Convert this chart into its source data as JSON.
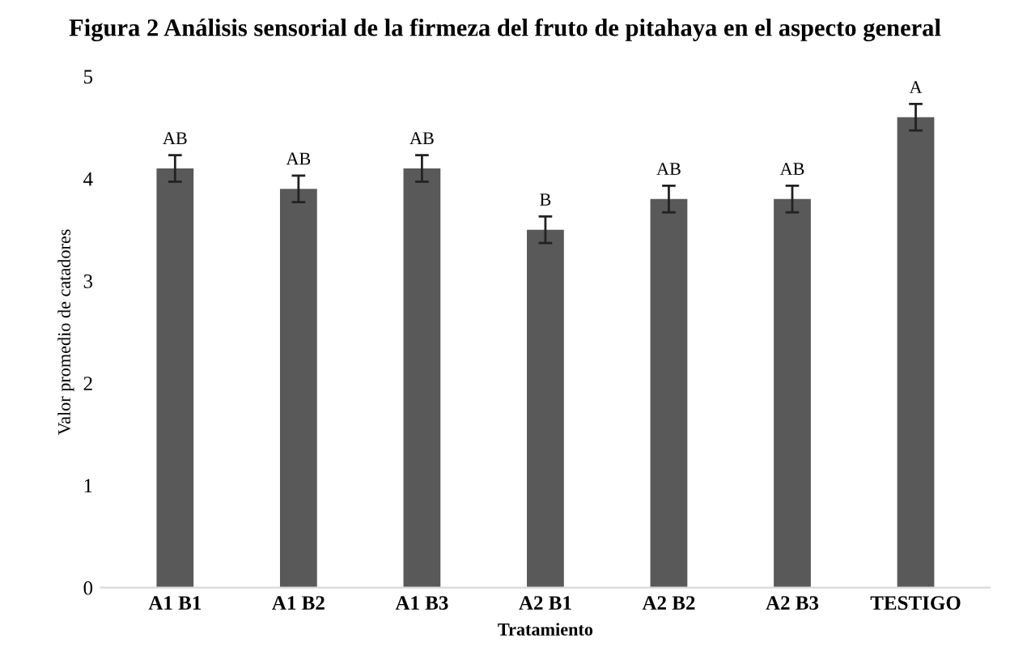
{
  "chart_data": {
    "type": "bar",
    "title": "Figura 2 Análisis sensorial de la firmeza del fruto de pitahaya en el aspecto general",
    "xlabel": "Tratamiento",
    "ylabel": "Valor promedio de catadores",
    "categories": [
      "A1 B1",
      "A1 B2",
      "A1 B3",
      "A2 B1",
      "A2 B2",
      "A2 B3",
      "TESTIGO"
    ],
    "values": [
      4.1,
      3.9,
      4.1,
      3.5,
      3.8,
      3.8,
      4.6
    ],
    "errors": [
      0.13,
      0.13,
      0.13,
      0.13,
      0.13,
      0.13,
      0.13
    ],
    "color": "#595959",
    "ylim": [
      0,
      5
    ],
    "yticks": [
      0,
      1,
      2,
      3,
      4,
      5
    ],
    "grid": false,
    "legend": false,
    "annotations": [
      {
        "text": "AB",
        "x": "A1 B1",
        "y": 4.3
      },
      {
        "text": "AB",
        "x": "A1 B2",
        "y": 4.1
      },
      {
        "text": "AB",
        "x": "A1 B3",
        "y": 4.3
      },
      {
        "text": "B",
        "x": "A2 B1",
        "y": 3.7
      },
      {
        "text": "AB",
        "x": "A2 B2",
        "y": 4.0
      },
      {
        "text": "AB",
        "x": "A2 B3",
        "y": 4.0
      },
      {
        "text": "A",
        "x": "TESTIGO",
        "y": 4.8
      }
    ]
  }
}
